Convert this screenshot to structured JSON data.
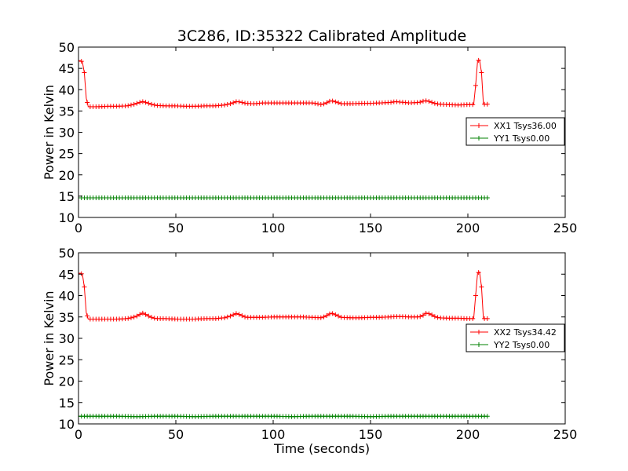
{
  "title": "3C286, ID:35322 Calibrated Amplitude",
  "chart_data": [
    {
      "type": "line",
      "xlabel": "",
      "ylabel": "Power in Kelvin",
      "xlim": [
        0,
        250
      ],
      "ylim": [
        10,
        50
      ],
      "xticks": [
        0,
        50,
        100,
        150,
        200,
        250
      ],
      "yticks": [
        10,
        15,
        20,
        25,
        30,
        35,
        40,
        45,
        50
      ],
      "legend": "right",
      "series": [
        {
          "name": "XX1 Tsys36.00",
          "color": "#ff0000",
          "marker": "plus",
          "x": [
            0,
            1,
            2,
            3,
            4,
            5,
            10,
            15,
            20,
            25,
            28,
            30,
            32,
            33,
            34,
            36,
            38,
            40,
            45,
            50,
            55,
            60,
            65,
            70,
            75,
            78,
            80,
            81,
            82,
            84,
            86,
            90,
            95,
            100,
            105,
            110,
            115,
            120,
            125,
            127,
            129,
            130,
            131,
            133,
            135,
            140,
            145,
            150,
            155,
            160,
            163,
            165,
            170,
            175,
            177,
            178,
            179,
            181,
            183,
            185,
            190,
            195,
            200,
            203,
            204,
            205,
            206,
            207,
            208,
            210
          ],
          "y": [
            46.8,
            46.8,
            46.5,
            44,
            38,
            36,
            36,
            36.1,
            36.1,
            36.2,
            36.5,
            36.8,
            37.1,
            37.2,
            37.1,
            36.8,
            36.5,
            36.3,
            36.2,
            36.2,
            36.1,
            36.1,
            36.2,
            36.2,
            36.4,
            36.7,
            37.0,
            37.2,
            37.2,
            37.0,
            36.8,
            36.7,
            36.9,
            36.9,
            36.9,
            36.9,
            36.9,
            36.9,
            36.5,
            36.8,
            37.3,
            37.4,
            37.3,
            37.0,
            36.7,
            36.7,
            36.8,
            36.8,
            36.9,
            37.0,
            37.2,
            37.1,
            36.9,
            37.0,
            37.3,
            37.4,
            37.4,
            37.1,
            36.8,
            36.6,
            36.5,
            36.4,
            36.5,
            36.5,
            41,
            46.8,
            47,
            44,
            36.6,
            36.6
          ]
        },
        {
          "name": "YY1 Tsys0.00",
          "color": "#008000",
          "marker": "plus",
          "x": [
            0,
            10,
            20,
            30,
            40,
            50,
            60,
            70,
            80,
            90,
            100,
            110,
            120,
            130,
            140,
            150,
            160,
            170,
            180,
            190,
            200,
            210
          ],
          "y": [
            14.6,
            14.6,
            14.6,
            14.6,
            14.6,
            14.6,
            14.6,
            14.6,
            14.6,
            14.6,
            14.6,
            14.6,
            14.6,
            14.6,
            14.6,
            14.6,
            14.6,
            14.6,
            14.6,
            14.6,
            14.6,
            14.6
          ]
        }
      ]
    },
    {
      "type": "line",
      "xlabel": "Time (seconds)",
      "ylabel": "Power in Kelvin",
      "xlim": [
        0,
        250
      ],
      "ylim": [
        10,
        50
      ],
      "xticks": [
        0,
        50,
        100,
        150,
        200,
        250
      ],
      "yticks": [
        10,
        15,
        20,
        25,
        30,
        35,
        40,
        45,
        50
      ],
      "legend": "right",
      "series": [
        {
          "name": "XX2 Tsys34.42",
          "color": "#ff0000",
          "marker": "plus",
          "x": [
            0,
            1,
            2,
            3,
            4,
            5,
            10,
            15,
            20,
            25,
            28,
            30,
            32,
            33,
            34,
            36,
            38,
            40,
            45,
            50,
            55,
            60,
            65,
            70,
            75,
            78,
            80,
            81,
            82,
            84,
            86,
            90,
            95,
            100,
            105,
            110,
            115,
            120,
            125,
            127,
            129,
            130,
            131,
            133,
            135,
            140,
            145,
            150,
            155,
            160,
            163,
            165,
            170,
            175,
            177,
            178,
            179,
            181,
            183,
            185,
            190,
            195,
            200,
            203,
            204,
            205,
            206,
            207,
            208,
            210
          ],
          "y": [
            45.2,
            45.2,
            45,
            42,
            36,
            34.5,
            34.5,
            34.5,
            34.5,
            34.6,
            34.9,
            35.2,
            35.7,
            35.9,
            35.7,
            35.2,
            34.8,
            34.6,
            34.6,
            34.5,
            34.5,
            34.5,
            34.6,
            34.6,
            34.8,
            35.2,
            35.6,
            35.8,
            35.7,
            35.3,
            34.9,
            34.9,
            34.9,
            35.0,
            35.0,
            35.0,
            35.0,
            34.9,
            34.8,
            35.2,
            35.7,
            35.9,
            35.7,
            35.3,
            34.9,
            34.8,
            34.8,
            34.9,
            34.9,
            35.0,
            35.1,
            35.1,
            35.0,
            35.0,
            35.4,
            35.8,
            35.9,
            35.6,
            35.1,
            34.8,
            34.7,
            34.7,
            34.6,
            34.6,
            40,
            45.3,
            45.5,
            42,
            34.6,
            34.6
          ]
        },
        {
          "name": "YY2 Tsys0.00",
          "color": "#008000",
          "marker": "plus",
          "x": [
            0,
            10,
            20,
            30,
            40,
            50,
            60,
            70,
            80,
            90,
            100,
            110,
            120,
            130,
            140,
            150,
            160,
            170,
            180,
            190,
            200,
            210
          ],
          "y": [
            11.8,
            11.8,
            11.8,
            11.7,
            11.8,
            11.8,
            11.7,
            11.8,
            11.8,
            11.8,
            11.8,
            11.7,
            11.8,
            11.8,
            11.8,
            11.7,
            11.8,
            11.8,
            11.8,
            11.8,
            11.8,
            11.8
          ]
        }
      ]
    }
  ]
}
